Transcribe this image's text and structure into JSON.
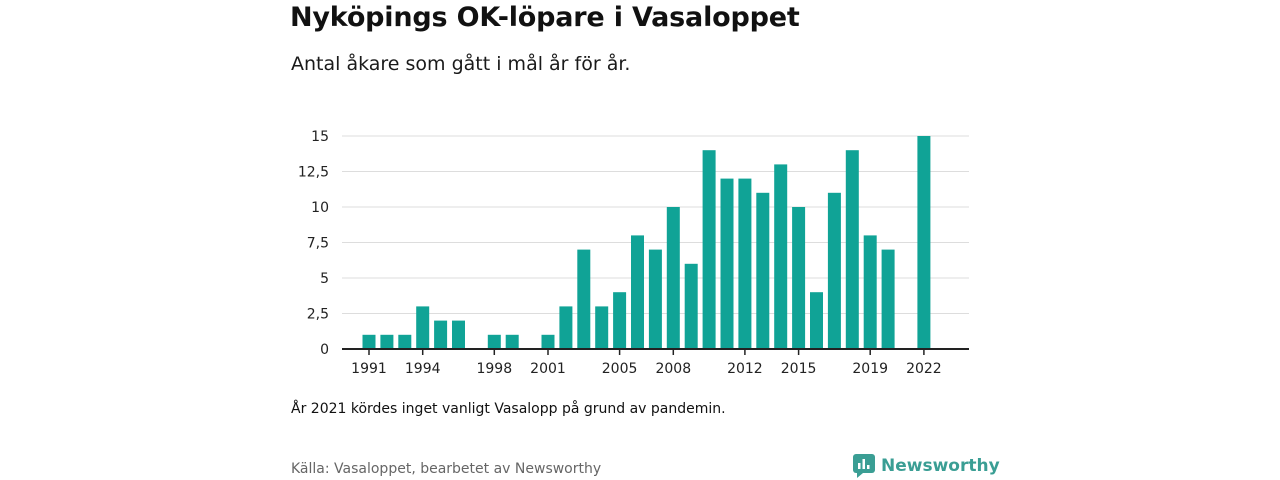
{
  "header": {
    "title": "Nyköpings OK-löpare i Vasaloppet",
    "subtitle": "Antal åkare som gått i mål år för år."
  },
  "chart_data": {
    "type": "bar",
    "title": "Nyköpings OK-löpare i Vasaloppet",
    "subtitle": "Antal åkare som gått i mål år för år.",
    "xlabel": "",
    "ylabel": "",
    "categories": [
      1991,
      1992,
      1993,
      1994,
      1995,
      1996,
      1997,
      1998,
      1999,
      2000,
      2001,
      2002,
      2003,
      2004,
      2005,
      2006,
      2007,
      2008,
      2009,
      2010,
      2011,
      2012,
      2013,
      2014,
      2015,
      2016,
      2017,
      2018,
      2019,
      2020,
      2021,
      2022
    ],
    "values": [
      1,
      1,
      1,
      3,
      2,
      2,
      0,
      1,
      1,
      0,
      1,
      3,
      7,
      3,
      4,
      8,
      7,
      10,
      6,
      14,
      12,
      12,
      11,
      13,
      10,
      4,
      11,
      14,
      8,
      7,
      0,
      15
    ],
    "ylim": [
      0,
      15
    ],
    "yticks": [
      0,
      2.5,
      5,
      7.5,
      10,
      12.5,
      15
    ],
    "ytick_labels": [
      "0",
      "2,5",
      "5",
      "7,5",
      "10",
      "12,5",
      "15"
    ],
    "xtick_labels": [
      "1991",
      "1994",
      "1998",
      "2001",
      "2005",
      "2008",
      "2012",
      "2015",
      "2019",
      "2022"
    ],
    "grid": true,
    "bar_color": "#10a396"
  },
  "footer": {
    "note": "År 2021 kördes inget vanligt Vasalopp på grund av pandemin.",
    "source": "Källa: Vasaloppet, bearbetet av Newsworthy",
    "brand": "Newsworthy"
  },
  "colors": {
    "bar": "#10a396",
    "grid": "#dddddd",
    "axis": "#222222",
    "brand": "#3a9e94"
  }
}
